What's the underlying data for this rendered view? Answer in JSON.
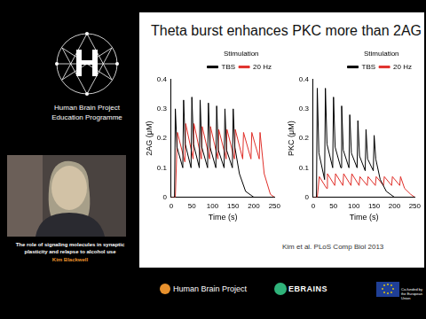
{
  "sidebar": {
    "logo_text": [
      "Human Brain Project",
      "Education Programme"
    ],
    "talk_title": "The role of signaling molecules in synaptic plasticity and relapse to alcohol use",
    "speaker": "Kim Blackwell"
  },
  "slide": {
    "title": "Theta burst enhances PKC more than 2AG",
    "citation": "Kim et al. PLoS Comp Biol 2013"
  },
  "chart_data": [
    {
      "type": "line",
      "y_label": "2AG (μM)",
      "x_label": "Time (s)",
      "xlim": [
        0,
        250
      ],
      "xticks": [
        0,
        50,
        100,
        150,
        200,
        250
      ],
      "ylim": [
        0,
        0.4
      ],
      "yticks": [
        0,
        0.1,
        0.2,
        0.3,
        0.4
      ],
      "grid": false,
      "legend": "top-right",
      "legend_title": "Stimulation",
      "series": [
        {
          "name": "TBS",
          "color": "#000000",
          "x": [
            0,
            8,
            10,
            14,
            28,
            30,
            34,
            48,
            50,
            54,
            68,
            70,
            74,
            88,
            90,
            94,
            108,
            110,
            114,
            128,
            130,
            134,
            148,
            150,
            154,
            165,
            180,
            200,
            250
          ],
          "values": [
            0,
            0,
            0.3,
            0.17,
            0.1,
            0.33,
            0.18,
            0.1,
            0.34,
            0.18,
            0.1,
            0.33,
            0.17,
            0.1,
            0.32,
            0.17,
            0.1,
            0.31,
            0.16,
            0.1,
            0.3,
            0.16,
            0.1,
            0.3,
            0.17,
            0.08,
            0.02,
            0,
            0
          ]
        },
        {
          "name": "20 Hz",
          "color": "#e0302a",
          "x": [
            0,
            10,
            15,
            33,
            35,
            53,
            55,
            73,
            75,
            93,
            95,
            113,
            115,
            133,
            135,
            153,
            155,
            173,
            175,
            193,
            195,
            213,
            215,
            225,
            240,
            250
          ],
          "values": [
            0,
            0,
            0.22,
            0.12,
            0.25,
            0.13,
            0.25,
            0.13,
            0.24,
            0.13,
            0.24,
            0.13,
            0.23,
            0.13,
            0.23,
            0.13,
            0.23,
            0.13,
            0.22,
            0.13,
            0.22,
            0.13,
            0.22,
            0.08,
            0.01,
            0
          ]
        }
      ]
    },
    {
      "type": "line",
      "y_label": "PKC (μM)",
      "x_label": "Time (s)",
      "xlim": [
        0,
        250
      ],
      "xticks": [
        0,
        50,
        100,
        150,
        200,
        250
      ],
      "ylim": [
        0,
        0.4
      ],
      "yticks": [
        0,
        0.1,
        0.2,
        0.3,
        0.4
      ],
      "grid": false,
      "legend": "top-right",
      "legend_title": "Stimulation",
      "series": [
        {
          "name": "TBS",
          "color": "#000000",
          "x": [
            0,
            8,
            10,
            14,
            28,
            30,
            34,
            48,
            50,
            54,
            68,
            70,
            74,
            88,
            90,
            94,
            108,
            110,
            114,
            128,
            130,
            134,
            148,
            150,
            154,
            165,
            180,
            200,
            250
          ],
          "values": [
            0,
            0,
            0.37,
            0.15,
            0.06,
            0.37,
            0.18,
            0.1,
            0.34,
            0.17,
            0.1,
            0.31,
            0.16,
            0.1,
            0.28,
            0.15,
            0.1,
            0.26,
            0.14,
            0.09,
            0.23,
            0.13,
            0.09,
            0.21,
            0.13,
            0.06,
            0.02,
            0,
            0
          ]
        },
        {
          "name": "20 Hz",
          "color": "#e0302a",
          "x": [
            0,
            10,
            15,
            33,
            35,
            53,
            55,
            73,
            75,
            93,
            95,
            113,
            115,
            133,
            135,
            153,
            155,
            173,
            175,
            193,
            195,
            213,
            215,
            225,
            240,
            250
          ],
          "values": [
            0,
            0,
            0.07,
            0.03,
            0.08,
            0.04,
            0.08,
            0.04,
            0.08,
            0.04,
            0.08,
            0.04,
            0.07,
            0.04,
            0.07,
            0.04,
            0.07,
            0.04,
            0.07,
            0.04,
            0.07,
            0.04,
            0.07,
            0.03,
            0.01,
            0
          ]
        }
      ]
    }
  ],
  "footer": {
    "logos": [
      "Human Brain Project",
      "EBRAINS",
      "Co-funded by the European Union"
    ]
  }
}
